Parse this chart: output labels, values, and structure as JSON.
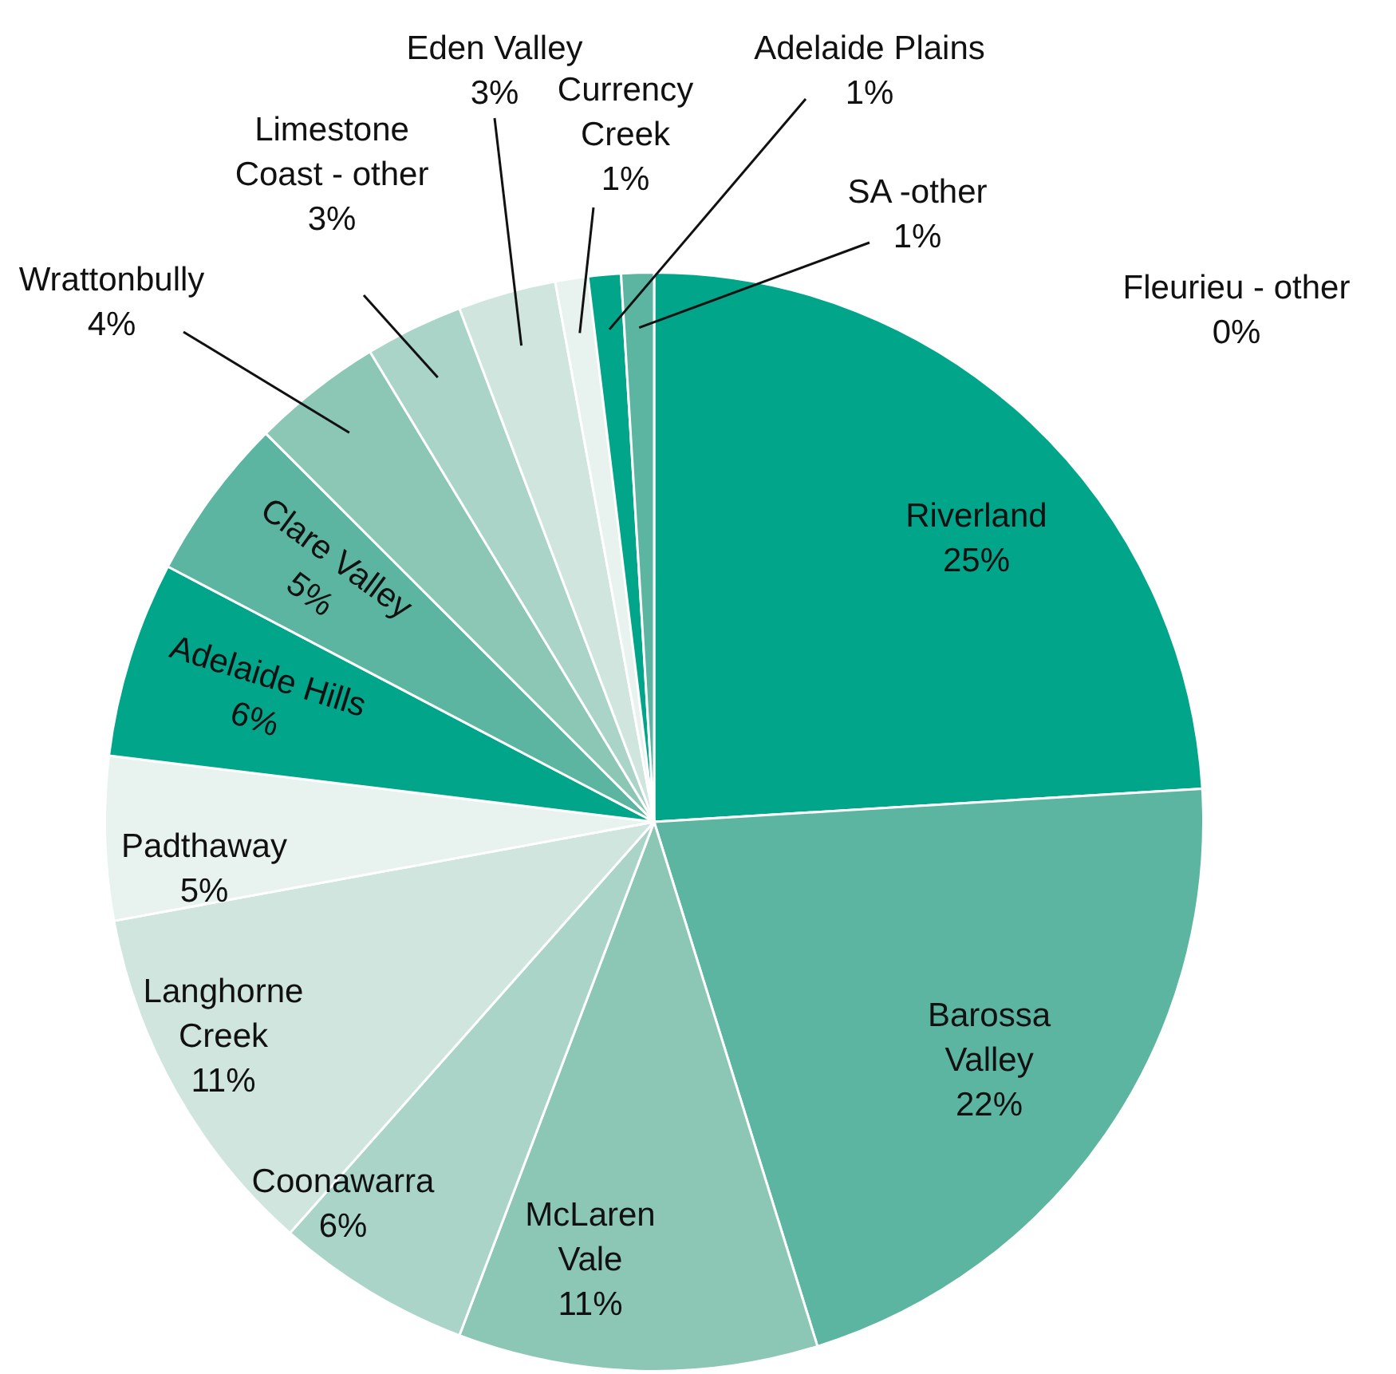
{
  "chart_data": {
    "type": "pie",
    "categories": [
      "Riverland",
      "Barossa Valley",
      "McLaren Vale",
      "Coonawarra",
      "Langhorne Creek",
      "Padthaway",
      "Adelaide Hills",
      "Clare Valley",
      "Wrattonbully",
      "Limestone Coast - other",
      "Eden Valley",
      "Currency Creek",
      "Adelaide Plains",
      "SA -other",
      "Fleurieu - other"
    ],
    "values": [
      25,
      22,
      11,
      6,
      11,
      5,
      6,
      5,
      4,
      3,
      3,
      1,
      1,
      1,
      0
    ],
    "value_labels": [
      "25%",
      "22%",
      "11%",
      "6%",
      "11%",
      "5%",
      "6%",
      "5%",
      "4%",
      "3%",
      "3%",
      "1%",
      "1%",
      "1%",
      "0%"
    ],
    "colors": [
      "#00a58a",
      "#5bb5a0",
      "#8cc6b5",
      "#a9d4c7",
      "#cfe5de",
      "#e8f2ee",
      "#00a58a",
      "#5bb5a0",
      "#8cc6b5",
      "#a9d4c7",
      "#cfe5de",
      "#e8f2ee",
      "#00a58a",
      "#5bb5a0",
      "#8cc6b5"
    ],
    "legend": false
  }
}
